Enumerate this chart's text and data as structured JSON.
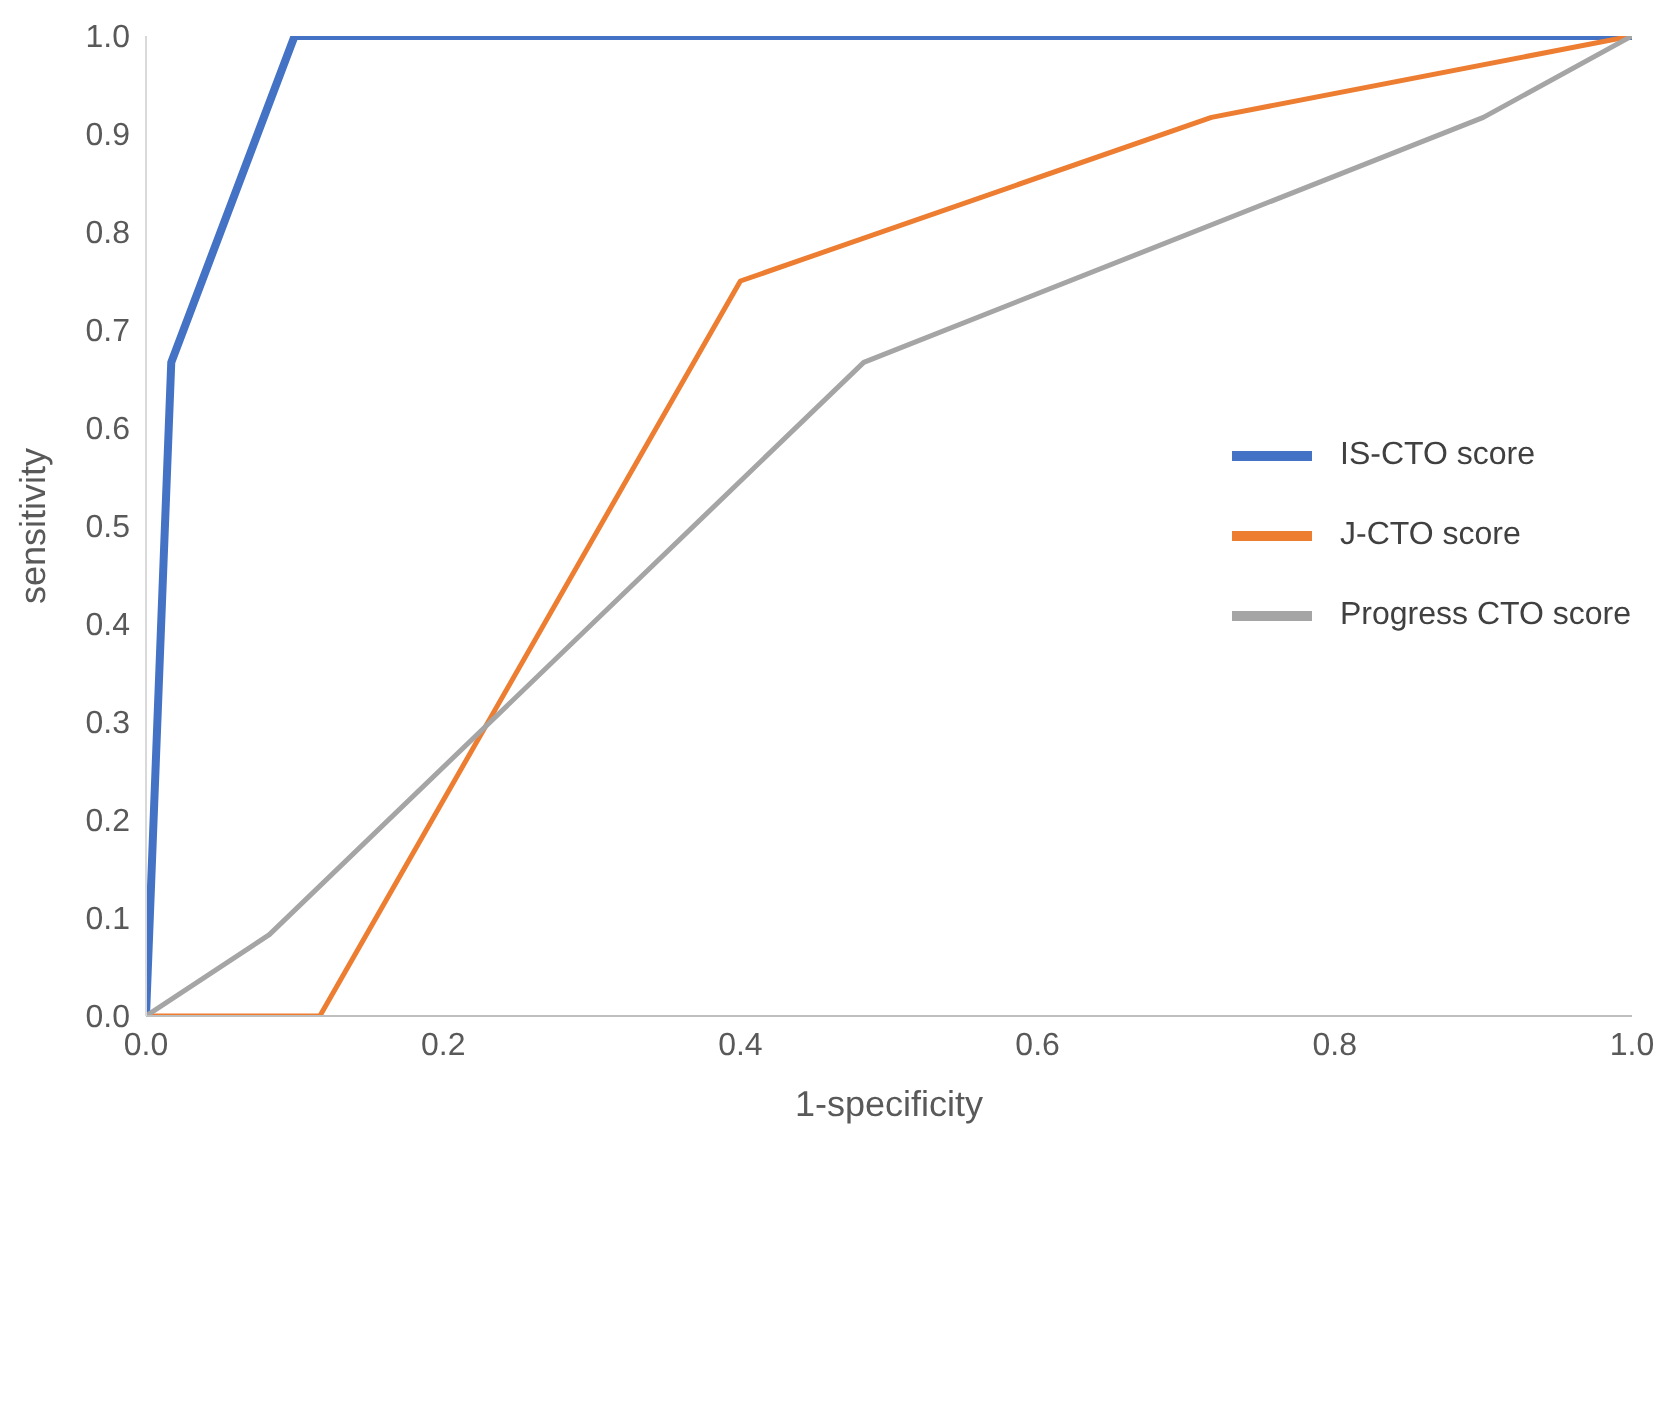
{
  "chart_data": {
    "type": "line",
    "xlabel": "1-specificity",
    "ylabel": "sensitivity",
    "series": [
      {
        "name": "IS-CTO score",
        "color": "#4472c4",
        "x": [
          0,
          0.017,
          0.1,
          1
        ],
        "values": [
          0,
          0.667,
          1,
          1
        ]
      },
      {
        "name": "J-CTO score",
        "color": "#ed7d31",
        "x": [
          0,
          0.117,
          0.4,
          0.717,
          1
        ],
        "values": [
          0,
          0,
          0.75,
          0.917,
          1
        ]
      },
      {
        "name": "Progress CTO score",
        "color": "#a5a5a5",
        "x": [
          0,
          0.083,
          0.483,
          0.9,
          1
        ],
        "values": [
          0,
          0.083,
          0.667,
          0.917,
          1
        ]
      }
    ],
    "xlim": [
      0,
      1
    ],
    "ylim": [
      0,
      1
    ],
    "xticks": [
      {
        "value": 0,
        "label": "0.0"
      },
      {
        "value": 0.2,
        "label": "0.2"
      },
      {
        "value": 0.4,
        "label": "0.4"
      },
      {
        "value": 0.6,
        "label": "0.6"
      },
      {
        "value": 0.8,
        "label": "0.8"
      },
      {
        "value": 1,
        "label": "1.0"
      }
    ],
    "yticks": [
      {
        "value": 0,
        "label": "0.0"
      },
      {
        "value": 0.1,
        "label": "0.1"
      },
      {
        "value": 0.2,
        "label": "0.2"
      },
      {
        "value": 0.3,
        "label": "0.3"
      },
      {
        "value": 0.4,
        "label": "0.4"
      },
      {
        "value": 0.5,
        "label": "0.5"
      },
      {
        "value": 0.6,
        "label": "0.6"
      },
      {
        "value": 0.7,
        "label": "0.7"
      },
      {
        "value": 0.8,
        "label": "0.8"
      },
      {
        "value": 0.9,
        "label": "0.9"
      },
      {
        "value": 1,
        "label": "1.0"
      }
    ],
    "grid": false,
    "legend": "right",
    "marker": "none",
    "line_style": "solid"
  }
}
